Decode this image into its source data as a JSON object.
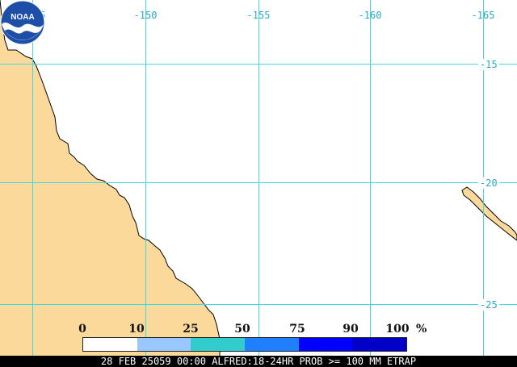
{
  "map": {
    "longitude_labels": [
      "-145",
      "-150",
      "-155",
      "-160",
      "-165"
    ],
    "latitude_labels": [
      "-15",
      "-20",
      "-25"
    ],
    "colors": {
      "land": "#fbd99b",
      "ocean": "#ffffff",
      "coastline": "#000000",
      "graticule": "#3fd8e4",
      "label": "#2aa8c8"
    }
  },
  "legend": {
    "labels": [
      "0",
      "10",
      "25",
      "50",
      "75",
      "90",
      "100"
    ],
    "unit": "%",
    "swatches": [
      "#ffffff",
      "#99c7ff",
      "#33cccc",
      "#1f7fff",
      "#0000ff",
      "#0000c8",
      "#00009a"
    ]
  },
  "logo": {
    "text": "NOAA",
    "icon": "noaa-logo"
  },
  "footer": {
    "text": "28 FEB 25059 00:00 ALFRED:18-24HR PROB >= 100 MM ETRAP"
  }
}
